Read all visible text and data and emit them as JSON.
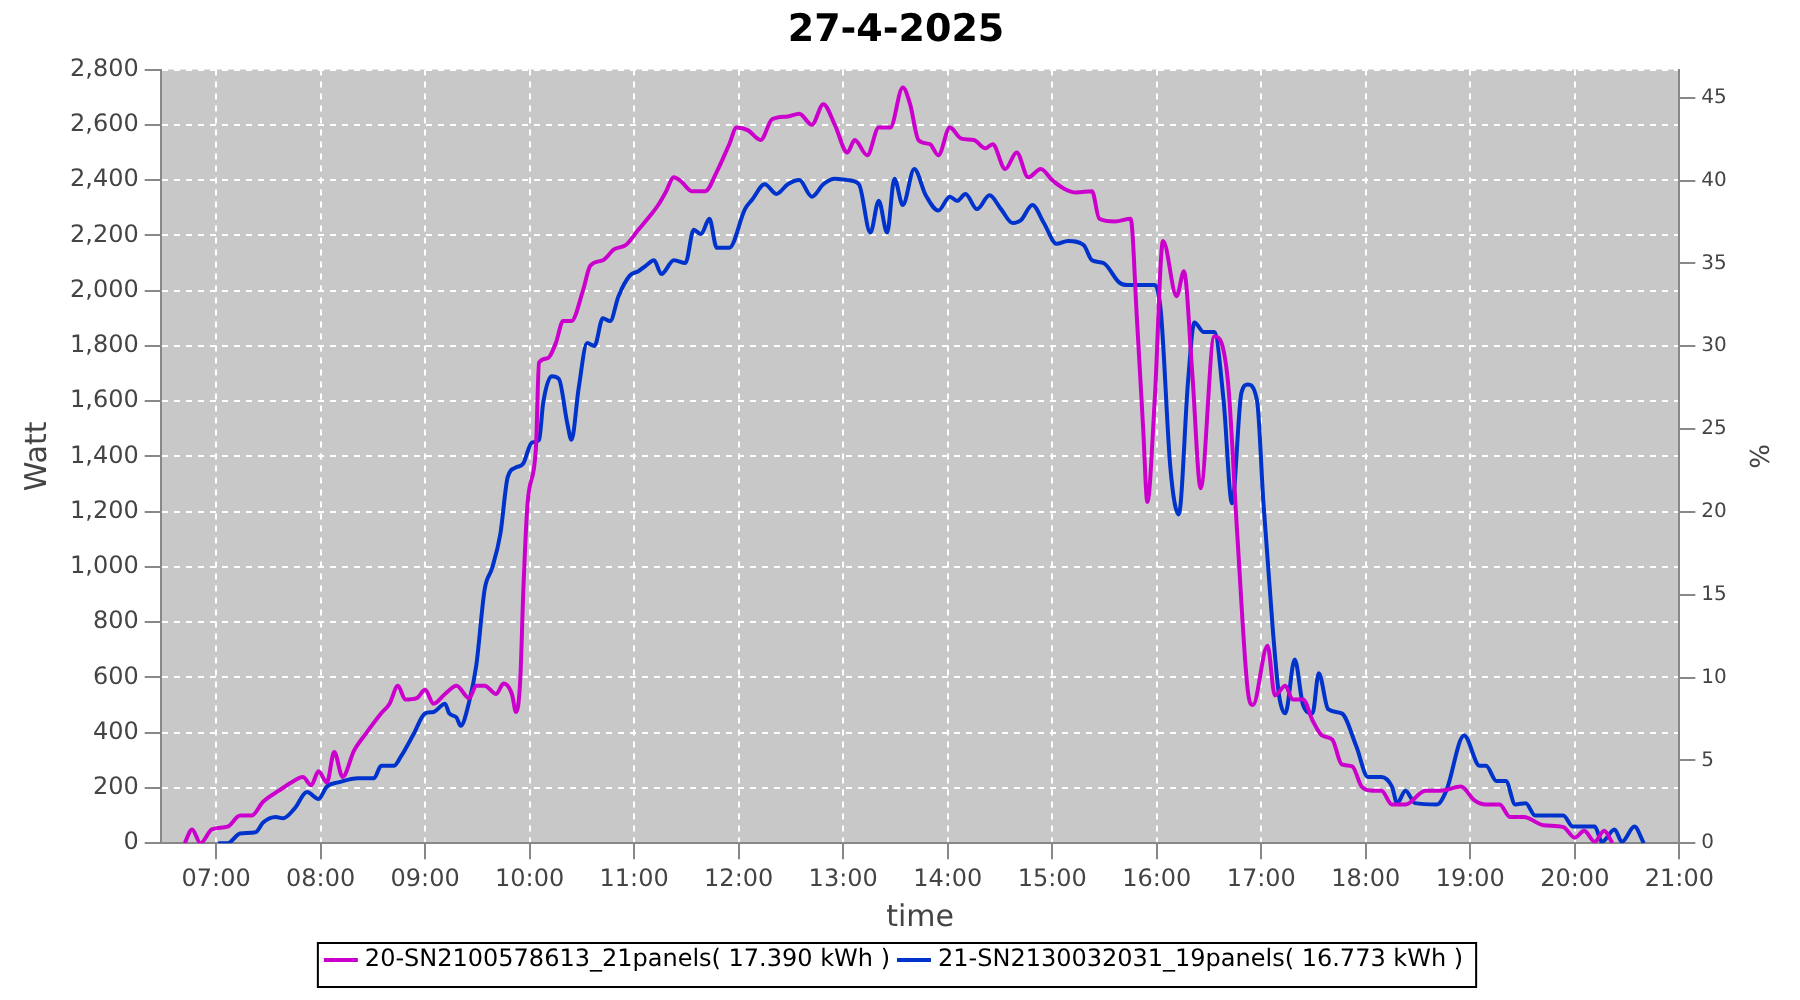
{
  "chart_data": {
    "type": "line",
    "title": "27-4-2025",
    "xlabel": "time",
    "ylabel": "Watt",
    "y2label": "%",
    "xlim": [
      6.47,
      21
    ],
    "xticks": [
      {
        "value": 7,
        "label": "07:00"
      },
      {
        "value": 8,
        "label": "08:00"
      },
      {
        "value": 9,
        "label": "09:00"
      },
      {
        "value": 10,
        "label": "10:00"
      },
      {
        "value": 11,
        "label": "11:00"
      },
      {
        "value": 12,
        "label": "12:00"
      },
      {
        "value": 13,
        "label": "13:00"
      },
      {
        "value": 14,
        "label": "14:00"
      },
      {
        "value": 15,
        "label": "15:00"
      },
      {
        "value": 16,
        "label": "16:00"
      },
      {
        "value": 17,
        "label": "17:00"
      },
      {
        "value": 18,
        "label": "18:00"
      },
      {
        "value": 19,
        "label": "19:00"
      },
      {
        "value": 20,
        "label": "20:00"
      },
      {
        "value": 21,
        "label": "21:00"
      }
    ],
    "ylim": [
      0,
      2800
    ],
    "yticks": [
      0,
      200,
      400,
      600,
      800,
      {
        "value": 1000,
        "label": "1,000"
      },
      {
        "value": 1200,
        "label": "1,200"
      },
      {
        "value": 1400,
        "label": "1,400"
      },
      {
        "value": 1600,
        "label": "1,600"
      },
      {
        "value": 1800,
        "label": "1,800"
      },
      {
        "value": 2000,
        "label": "2,000"
      },
      {
        "value": 2200,
        "label": "2,200"
      },
      {
        "value": 2400,
        "label": "2,400"
      },
      {
        "value": 2600,
        "label": "2,600"
      },
      {
        "value": 2800,
        "label": "2,800"
      }
    ],
    "y2lim": [
      0,
      46.7
    ],
    "y2ticks": [
      0,
      5,
      10,
      15,
      20,
      25,
      30,
      35,
      40,
      45
    ],
    "grid": true,
    "legend": "bottom",
    "marker": "none",
    "line_style": "solid",
    "series": [
      {
        "name": "20-SN2100578613_21panels( 17.390 kWh )",
        "color": "#cc00cc",
        "x": [
          6.7,
          6.77,
          6.85,
          6.96,
          7.11,
          7.23,
          7.34,
          7.45,
          7.6,
          7.72,
          7.83,
          7.91,
          7.98,
          8.06,
          8.13,
          8.21,
          8.32,
          8.43,
          8.58,
          8.66,
          8.74,
          8.81,
          8.92,
          9.0,
          9.08,
          9.19,
          9.3,
          9.42,
          9.49,
          9.57,
          9.68,
          9.75,
          9.83,
          9.87,
          9.91,
          9.94,
          9.98,
          10.06,
          10.09,
          10.17,
          10.25,
          10.32,
          10.4,
          10.51,
          10.58,
          10.7,
          10.81,
          10.92,
          11.04,
          11.15,
          11.23,
          11.3,
          11.38,
          11.45,
          11.55,
          11.68,
          11.79,
          11.91,
          11.98,
          12.09,
          12.21,
          12.32,
          12.47,
          12.58,
          12.7,
          12.81,
          12.92,
          13.04,
          13.11,
          13.23,
          13.34,
          13.45,
          13.57,
          13.64,
          13.72,
          13.83,
          13.91,
          14.02,
          14.13,
          14.25,
          14.36,
          14.43,
          14.55,
          14.66,
          14.77,
          14.89,
          15.0,
          15.11,
          15.23,
          15.38,
          15.45,
          15.6,
          15.75,
          15.81,
          15.87,
          15.91,
          15.98,
          16.06,
          16.19,
          16.26,
          16.34,
          16.42,
          16.55,
          16.68,
          16.77,
          16.87,
          16.92,
          17.06,
          17.13,
          17.23,
          17.3,
          17.4,
          17.49,
          17.58,
          17.68,
          17.77,
          17.87,
          17.96,
          18.06,
          18.15,
          18.25,
          18.38,
          18.57,
          18.72,
          18.91,
          19.04,
          19.15,
          19.28,
          19.38,
          19.51,
          19.7,
          19.89,
          20.0,
          20.09,
          20.19,
          20.28,
          20.36
        ],
        "values": [
          0,
          50,
          0,
          50,
          60,
          100,
          100,
          150,
          190,
          220,
          240,
          210,
          260,
          220,
          330,
          240,
          335,
          395,
          470,
          505,
          570,
          520,
          525,
          555,
          505,
          540,
          570,
          525,
          570,
          570,
          540,
          578,
          540,
          475,
          590,
          920,
          1230,
          1430,
          1740,
          1755,
          1810,
          1890,
          1890,
          2000,
          2090,
          2110,
          2150,
          2165,
          2220,
          2270,
          2310,
          2355,
          2410,
          2395,
          2360,
          2360,
          2430,
          2530,
          2590,
          2580,
          2545,
          2620,
          2630,
          2640,
          2600,
          2675,
          2600,
          2500,
          2545,
          2490,
          2590,
          2590,
          2735,
          2675,
          2545,
          2530,
          2490,
          2590,
          2550,
          2545,
          2515,
          2530,
          2440,
          2500,
          2410,
          2440,
          2400,
          2370,
          2355,
          2360,
          2260,
          2250,
          2260,
          1900,
          1500,
          1235,
          1600,
          2180,
          1980,
          2070,
          1700,
          1285,
          1835,
          1675,
          1120,
          555,
          500,
          715,
          535,
          570,
          520,
          520,
          445,
          390,
          375,
          285,
          278,
          205,
          190,
          190,
          140,
          140,
          190,
          190,
          205,
          155,
          140,
          140,
          95,
          95,
          65,
          58,
          20,
          45,
          5,
          45,
          0
        ]
      },
      {
        "name": "21-SN2130032031_19panels( 16.773 kWh )",
        "color": "#0033cc",
        "x": [
          7.02,
          7.11,
          7.23,
          7.38,
          7.45,
          7.57,
          7.64,
          7.75,
          7.87,
          7.98,
          8.06,
          8.17,
          8.36,
          8.51,
          8.58,
          8.7,
          8.77,
          8.89,
          9.0,
          9.08,
          9.19,
          9.23,
          9.3,
          9.34,
          9.42,
          9.49,
          9.57,
          9.64,
          9.72,
          9.79,
          9.87,
          9.94,
          10.02,
          10.09,
          10.13,
          10.21,
          10.28,
          10.36,
          10.4,
          10.47,
          10.55,
          10.62,
          10.7,
          10.77,
          10.85,
          10.96,
          11.04,
          11.11,
          11.19,
          11.26,
          11.38,
          11.49,
          11.57,
          11.64,
          11.72,
          11.79,
          11.91,
          12.06,
          12.13,
          12.25,
          12.36,
          12.47,
          12.58,
          12.7,
          12.81,
          12.92,
          13.04,
          13.15,
          13.26,
          13.34,
          13.42,
          13.49,
          13.57,
          13.68,
          13.79,
          13.91,
          14.02,
          14.09,
          14.17,
          14.28,
          14.4,
          14.51,
          14.62,
          14.7,
          14.81,
          14.92,
          15.04,
          15.15,
          15.3,
          15.38,
          15.49,
          15.64,
          15.72,
          15.83,
          15.98,
          16.04,
          16.13,
          16.21,
          16.3,
          16.36,
          16.45,
          16.55,
          16.64,
          16.72,
          16.81,
          16.87,
          16.96,
          17.02,
          17.11,
          17.17,
          17.23,
          17.32,
          17.4,
          17.49,
          17.55,
          17.64,
          17.77,
          17.91,
          18.02,
          18.15,
          18.25,
          18.3,
          18.38,
          18.47,
          18.68,
          18.77,
          18.94,
          19.09,
          19.15,
          19.25,
          19.34,
          19.43,
          19.53,
          19.62,
          19.89,
          19.98,
          20.19,
          20.26,
          20.38,
          20.45,
          20.57,
          20.66
        ],
        "values": [
          0,
          0,
          35,
          40,
          75,
          95,
          90,
          125,
          185,
          160,
          205,
          220,
          235,
          235,
          280,
          280,
          315,
          395,
          470,
          475,
          505,
          470,
          455,
          425,
          510,
          645,
          920,
          995,
          1120,
          1325,
          1360,
          1375,
          1450,
          1460,
          1595,
          1690,
          1680,
          1520,
          1460,
          1650,
          1810,
          1800,
          1900,
          1890,
          1980,
          2055,
          2070,
          2090,
          2110,
          2060,
          2110,
          2100,
          2220,
          2205,
          2260,
          2155,
          2155,
          2295,
          2330,
          2385,
          2350,
          2385,
          2400,
          2340,
          2385,
          2405,
          2400,
          2385,
          2210,
          2325,
          2210,
          2405,
          2310,
          2440,
          2345,
          2290,
          2340,
          2325,
          2350,
          2295,
          2345,
          2295,
          2245,
          2255,
          2310,
          2245,
          2170,
          2180,
          2165,
          2110,
          2100,
          2030,
          2020,
          2020,
          2020,
          1920,
          1360,
          1190,
          1675,
          1885,
          1850,
          1850,
          1600,
          1230,
          1630,
          1660,
          1600,
          1235,
          775,
          535,
          470,
          665,
          500,
          470,
          615,
          485,
          470,
          350,
          240,
          240,
          205,
          145,
          190,
          145,
          140,
          190,
          390,
          280,
          280,
          225,
          225,
          140,
          145,
          100,
          100,
          60,
          60,
          5,
          50,
          5,
          60,
          0
        ]
      }
    ]
  }
}
